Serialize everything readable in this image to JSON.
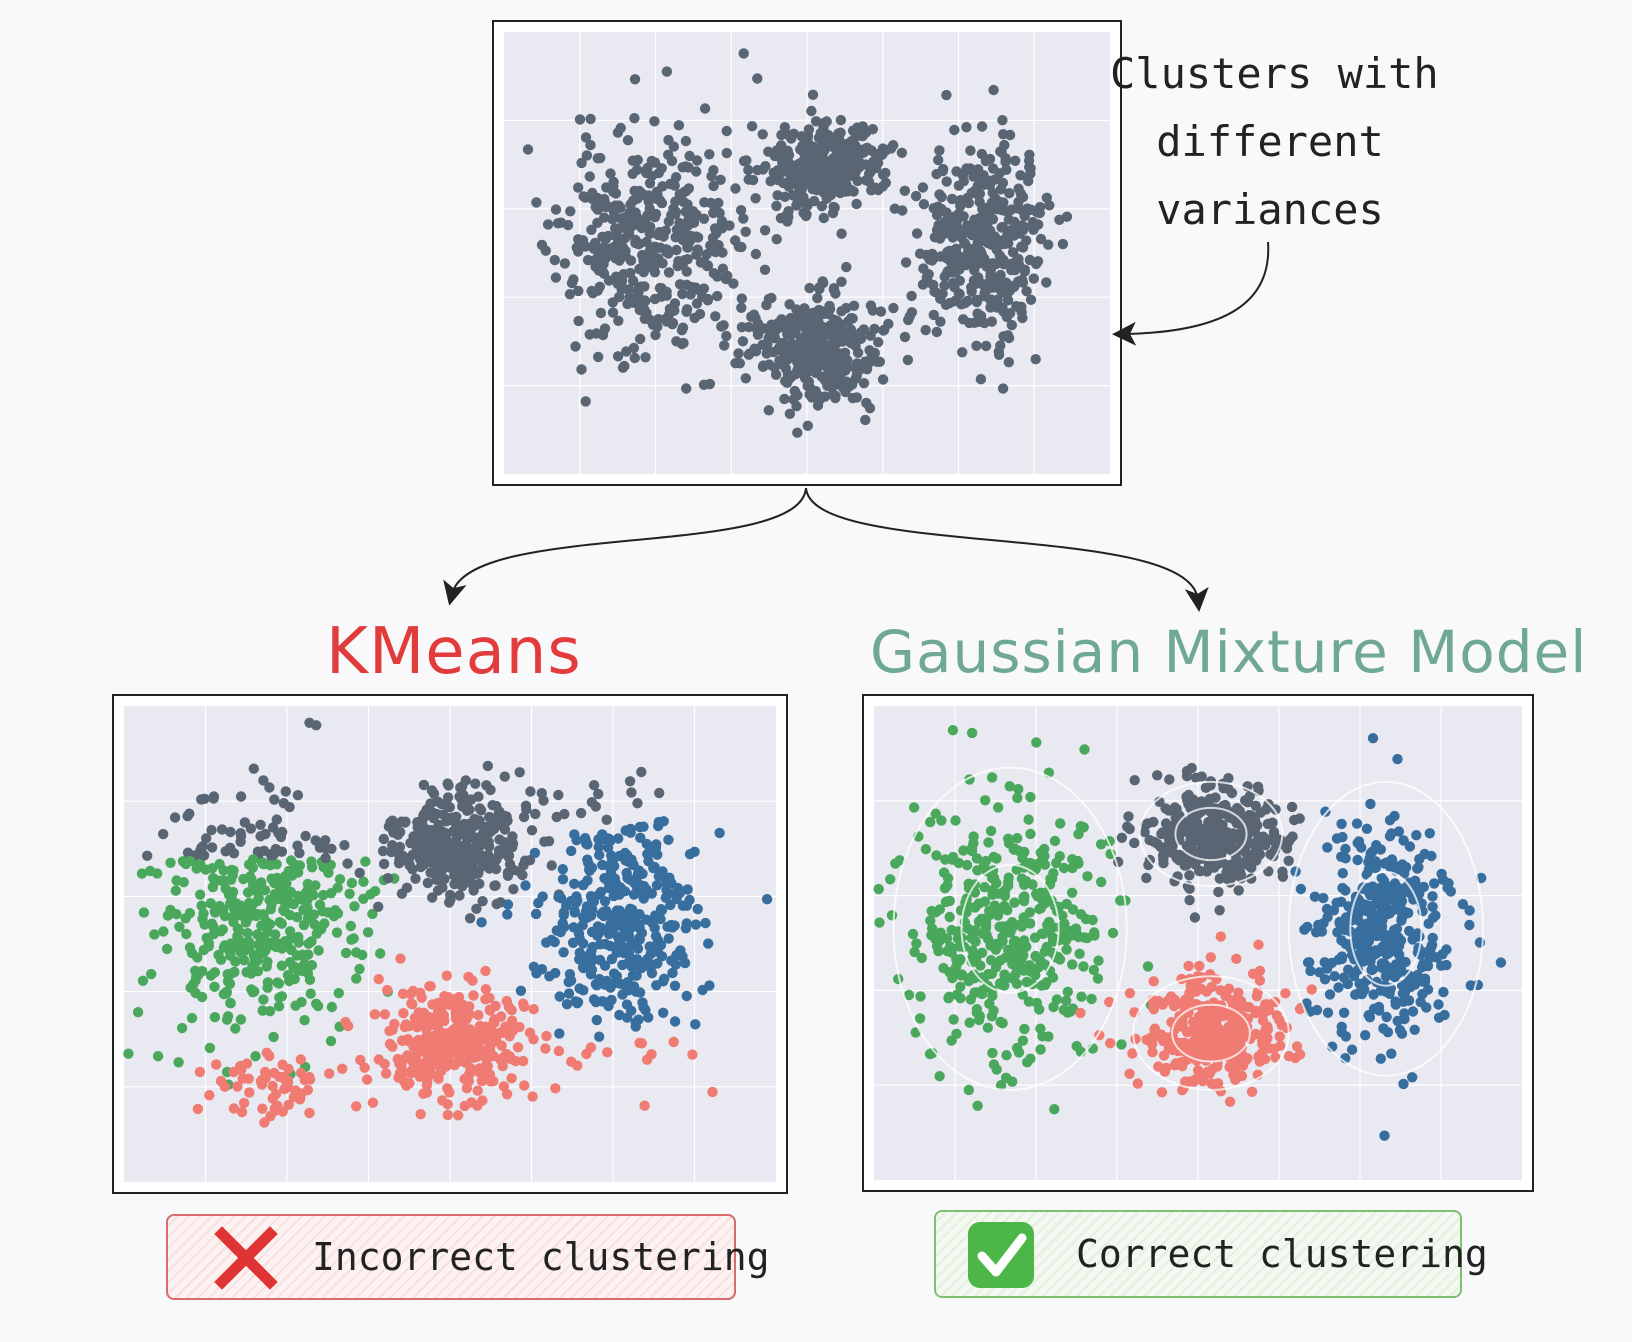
{
  "annotation": {
    "lines": [
      "Clusters with",
      "different",
      "variances"
    ]
  },
  "methods": {
    "kmeans": {
      "title": "KMeans",
      "verdict": "Incorrect clustering",
      "verdict_icon": "cross-mark-icon"
    },
    "gmm": {
      "title": "Gaussian Mixture Model",
      "verdict": "Correct clustering",
      "verdict_icon": "check-mark-icon"
    }
  },
  "colors": {
    "gray_points": "#5a6573",
    "green": "#4aa85c",
    "red": "#ef7b72",
    "blue": "#376e9e",
    "kmeans_title": "#e23b3b",
    "gmm_title": "#6fa893",
    "plot_background": "#e9e9f2",
    "cross": "#e03434",
    "check": "#4cb648"
  },
  "chart_data": [
    {
      "type": "scatter",
      "panel": "input",
      "xlim": [
        0,
        10
      ],
      "ylim": [
        0,
        10
      ],
      "grid": true,
      "clusters": [
        {
          "center": [
            2.4,
            5.2
          ],
          "spread": [
            0.75,
            1.25
          ],
          "count": 420,
          "label": "gray"
        },
        {
          "center": [
            5.3,
            7.0
          ],
          "spread": [
            0.5,
            0.5
          ],
          "count": 330,
          "label": "gray"
        },
        {
          "center": [
            5.1,
            2.9
          ],
          "spread": [
            0.55,
            0.6
          ],
          "count": 330,
          "label": "gray"
        },
        {
          "center": [
            7.9,
            5.2
          ],
          "spread": [
            0.55,
            1.2
          ],
          "count": 400,
          "label": "gray"
        }
      ]
    },
    {
      "type": "scatter",
      "panel": "kmeans",
      "xlim": [
        0,
        10
      ],
      "ylim": [
        0,
        10
      ],
      "grid": true,
      "clusters": [
        {
          "center": [
            2.0,
            5.5
          ],
          "spread": [
            0.75,
            1.25
          ],
          "count": 420,
          "label": "green",
          "top_split": 6.8,
          "top_label": "gray"
        },
        {
          "center": [
            5.1,
            7.1
          ],
          "spread": [
            0.55,
            0.55
          ],
          "count": 330,
          "label": "gray"
        },
        {
          "center": [
            5.0,
            2.9
          ],
          "spread": [
            0.6,
            0.6
          ],
          "count": 330,
          "label": "red"
        },
        {
          "center": [
            7.6,
            5.4
          ],
          "spread": [
            0.6,
            1.25
          ],
          "count": 400,
          "label": "blue",
          "top_split": 7.6,
          "top_label": "gray",
          "bottom_split": 3.0,
          "bottom_label": "red"
        }
      ],
      "extra_red": [
        {
          "center": [
            2.2,
            2.0
          ],
          "spread": [
            0.5,
            0.4
          ],
          "count": 60
        }
      ]
    },
    {
      "type": "scatter",
      "panel": "gmm",
      "xlim": [
        0,
        10
      ],
      "ylim": [
        0,
        10
      ],
      "grid": true,
      "clusters": [
        {
          "center": [
            2.1,
            5.3
          ],
          "spread": [
            0.75,
            1.35
          ],
          "count": 420,
          "label": "green"
        },
        {
          "center": [
            5.2,
            7.3
          ],
          "spread": [
            0.55,
            0.55
          ],
          "count": 330,
          "label": "gray"
        },
        {
          "center": [
            5.2,
            3.1
          ],
          "spread": [
            0.6,
            0.6
          ],
          "count": 330,
          "label": "red"
        },
        {
          "center": [
            7.9,
            5.3
          ],
          "spread": [
            0.55,
            1.2
          ],
          "count": 400,
          "label": "blue"
        }
      ],
      "ellipses": [
        {
          "center": [
            2.1,
            5.3
          ],
          "axes": [
            [
              0.75,
              1.35
            ],
            [
              1.8,
              3.4
            ]
          ]
        },
        {
          "center": [
            5.2,
            7.3
          ],
          "axes": [
            [
              0.55,
              0.55
            ],
            [
              1.1,
              1.1
            ]
          ]
        },
        {
          "center": [
            5.2,
            3.1
          ],
          "axes": [
            [
              0.6,
              0.6
            ],
            [
              1.2,
              1.2
            ]
          ]
        },
        {
          "center": [
            7.9,
            5.3
          ],
          "axes": [
            [
              0.55,
              1.2
            ],
            [
              1.5,
              3.1
            ]
          ]
        }
      ]
    }
  ]
}
